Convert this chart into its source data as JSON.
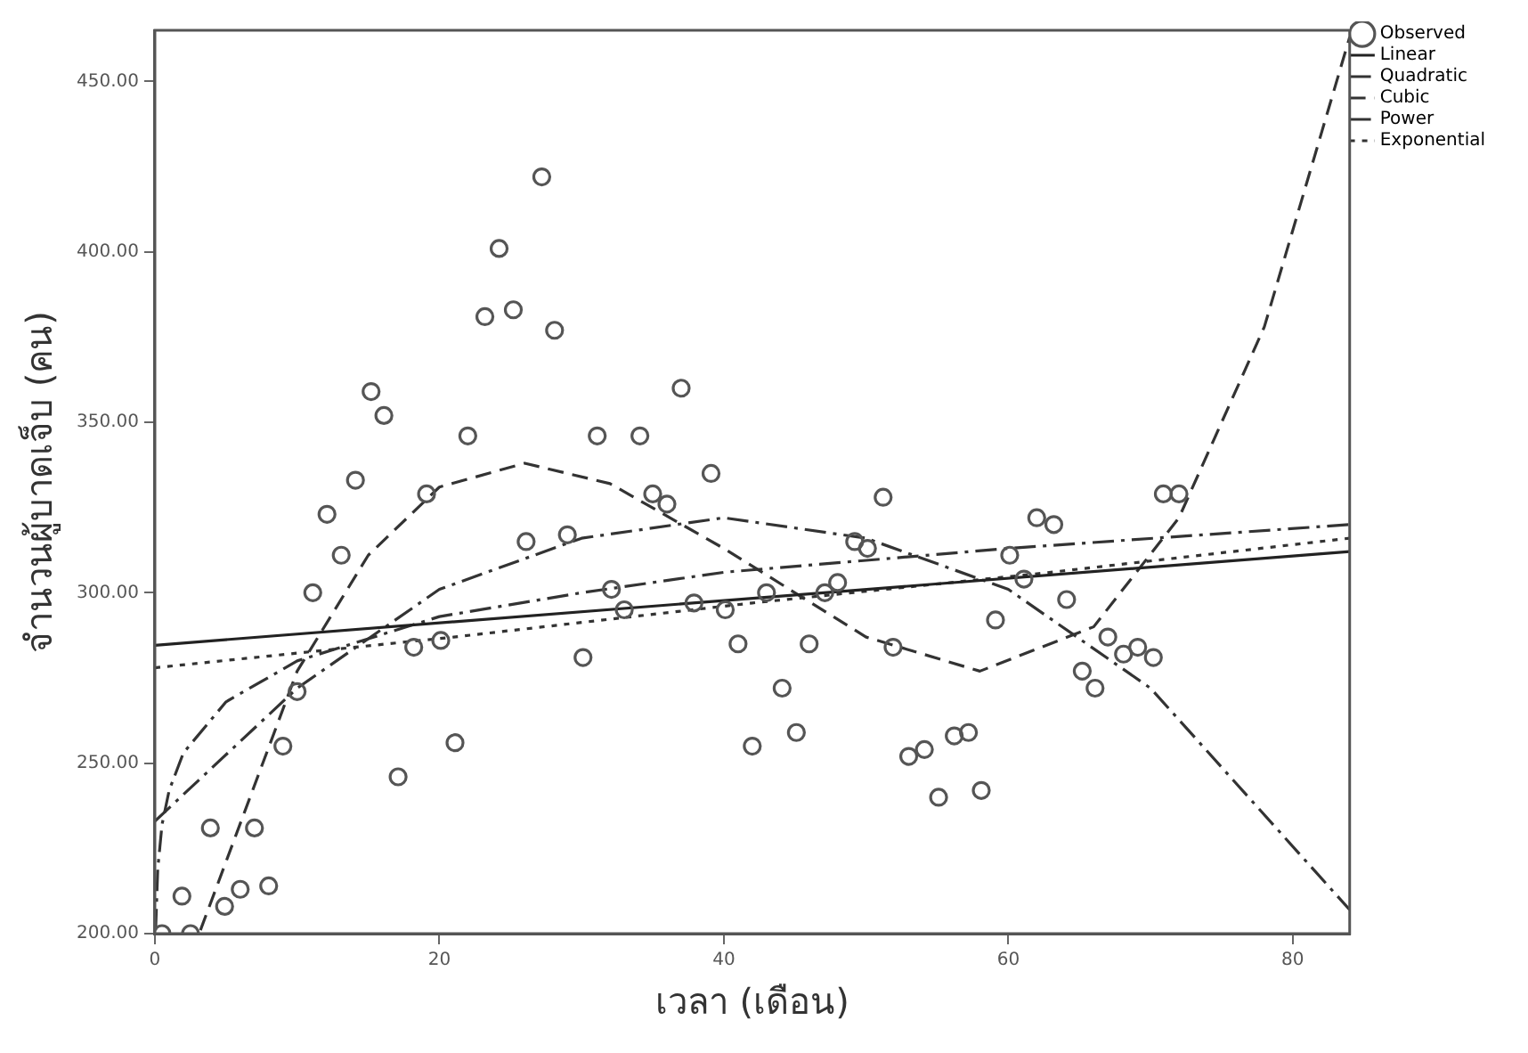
{
  "chart_data": {
    "type": "scatter",
    "xlabel": "เวลา (เดือน)",
    "ylabel": "จำนวนผู้บาดเจ็บ (คน)",
    "xlim": [
      0,
      84
    ],
    "ylim": [
      200,
      465
    ],
    "xticks": [
      0,
      20,
      40,
      60,
      80
    ],
    "yticks": [
      {
        "value": 200,
        "label": "200.00"
      },
      {
        "value": 250,
        "label": "250.00"
      },
      {
        "value": 300,
        "label": "300.00"
      },
      {
        "value": 350,
        "label": "350.00"
      },
      {
        "value": 400,
        "label": "400.00"
      },
      {
        "value": 450,
        "label": "450.00"
      }
    ],
    "grid": false,
    "legend": "top right",
    "series": [
      {
        "name": "Observed",
        "marker": "circle",
        "color": "#555555",
        "x": [
          0.5,
          2.5,
          1.9,
          3.9,
          4.9,
          6.0,
          7.0,
          8.0,
          9.0,
          10.0,
          11.1,
          12.1,
          13.1,
          14.1,
          15.2,
          16.1,
          17.1,
          18.2,
          19.1,
          20.1,
          21.1,
          22.0,
          23.2,
          24.2,
          25.2,
          26.1,
          27.2,
          28.1,
          29.0,
          30.1,
          31.1,
          32.1,
          33.0,
          34.1,
          35.0,
          36.0,
          37.0,
          37.9,
          39.1,
          40.1,
          41.0,
          42.0,
          43.0,
          44.1,
          45.1,
          46.0,
          47.1,
          48.0,
          49.2,
          50.1,
          51.2,
          51.9,
          53.0,
          54.1,
          55.1,
          56.2,
          57.2,
          58.1,
          59.1,
          60.1,
          61.1,
          62.0,
          63.2,
          64.1,
          65.2,
          66.1,
          67.0,
          68.1,
          69.1,
          70.2,
          70.9,
          72.0
        ],
        "values": [
          200,
          200,
          211,
          231,
          208,
          213,
          231,
          214,
          255,
          271,
          300,
          323,
          311,
          333,
          359,
          352,
          246,
          284,
          329,
          286,
          256,
          346,
          381,
          401,
          383,
          315,
          422,
          377,
          317,
          281,
          346,
          301,
          295,
          346,
          329,
          326,
          360,
          297,
          335,
          295,
          285,
          255,
          300,
          272,
          259,
          285,
          300,
          303,
          315,
          313,
          328,
          284,
          252,
          254,
          240,
          258,
          259,
          242,
          292,
          311,
          304,
          322,
          320,
          298,
          277,
          272,
          287,
          282,
          284,
          281,
          329,
          329
        ]
      },
      {
        "name": "Linear",
        "type": "line",
        "marker": "none",
        "line_style": "solid",
        "color": "#222222",
        "x": [
          0,
          84
        ],
        "values": [
          284.6,
          312.1
        ]
      },
      {
        "name": "Quadratic",
        "type": "line",
        "marker": "none",
        "line_style": "dashdot",
        "color": "#333333",
        "x": [
          0,
          10,
          20,
          30,
          40,
          50,
          60,
          70,
          84
        ],
        "values": [
          233,
          272,
          301,
          316,
          322,
          316,
          301,
          272,
          207
        ]
      },
      {
        "name": "Cubic",
        "type": "line",
        "marker": "none",
        "line_style": "dashed",
        "color": "#333333",
        "x": [
          3.2,
          10,
          15,
          20,
          26,
          32,
          40,
          50,
          58,
          66,
          72,
          78,
          84
        ],
        "values": [
          201,
          277,
          311,
          331,
          338,
          332,
          313,
          287,
          277,
          290,
          322,
          378,
          463
        ]
      },
      {
        "name": "Power",
        "type": "line",
        "marker": "none",
        "line_style": "dashdot",
        "color": "#333333",
        "x": [
          0.05,
          0.2,
          0.5,
          1,
          2,
          5,
          10,
          20,
          30,
          40,
          60,
          84
        ],
        "values": [
          201,
          219,
          232,
          242,
          253,
          268,
          280,
          293,
          300,
          306,
          313,
          320
        ]
      },
      {
        "name": "Exponential",
        "type": "line",
        "marker": "none",
        "line_style": "dotted",
        "color": "#333333",
        "x": [
          0,
          21,
          42,
          63,
          84
        ],
        "values": [
          278,
          287,
          297,
          306,
          316
        ]
      }
    ]
  }
}
